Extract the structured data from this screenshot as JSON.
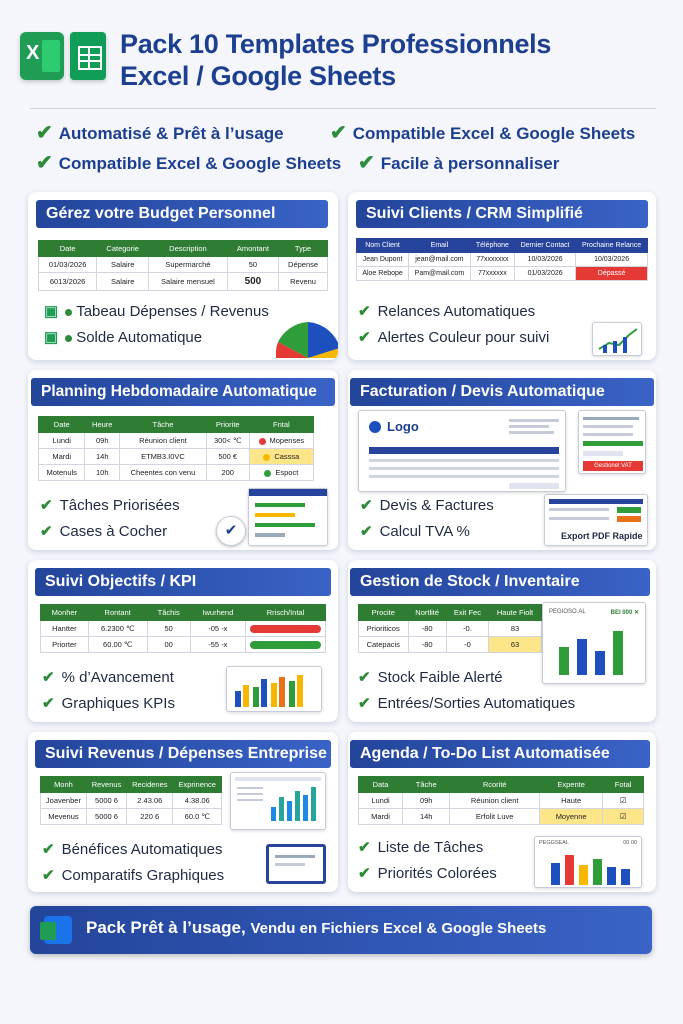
{
  "header": {
    "title_line1": "Pack 10 Templates Professionnels",
    "title_line2": "Excel / Google Sheets",
    "excel_logo_letter": "X"
  },
  "features": [
    "Automatisé & Prêt à l’usage",
    "Compatible Excel & Google Sheets",
    "Compatible Excel & Google Sheets",
    "Facile à personnaliser"
  ],
  "cards": {
    "budget": {
      "title": "Gérez votre Budget Personnel",
      "headers": [
        "Date",
        "Categorie",
        "Description",
        "Amontant",
        "Type"
      ],
      "rows": [
        [
          "01/03/2026",
          "Salaire",
          "Supermarché",
          "50",
          "Dépense"
        ],
        [
          "6013/2026",
          "Salaire",
          "Salaire mensuel",
          "500",
          "Revenu"
        ]
      ],
      "bullets": [
        "Tabeau Dépenses / Revenus",
        "Solde Automatique"
      ]
    },
    "crm": {
      "title": "Suivi Clients / CRM Simplifié",
      "headers": [
        "Nom Client",
        "Email",
        "Téléphone",
        "Dernier Contact",
        "Prochaine Relance"
      ],
      "rows": [
        [
          "Jean Dupont",
          "jean@mail.com",
          "77xxxxxxx",
          "10/03/2026",
          "10/03/2026"
        ],
        [
          "Aloe Rebope",
          "Pam@mail.com",
          "77xxxxxx",
          "01/03/2026",
          "Dépassé"
        ]
      ],
      "bullets": [
        "Relances Automatiques",
        "Alertes Couleur pour suivi"
      ]
    },
    "planning": {
      "title": "Planning Hebdomadaire Automatique",
      "headers": [
        "Date",
        "Heure",
        "Tâche",
        "Priorite",
        "Fntal"
      ],
      "rows": [
        [
          "Lundi",
          "09h",
          "Réunion client",
          "300< ℃",
          "Mopenses"
        ],
        [
          "Mardi",
          "14h",
          "ETMB3.I0VC",
          "500 €",
          "Casssa"
        ],
        [
          "Motenuls",
          "10h",
          "Cheentes con venu",
          "200",
          "Espoct"
        ]
      ],
      "bullets": [
        "Tâches Priorisées",
        "Cases à Cocher"
      ]
    },
    "facturation": {
      "title": "Facturation / Devis Automatique",
      "logo_text": "Logo",
      "button_text": "Gestionel VAT",
      "footer_text": "Export PDF Rapide",
      "bullets": [
        "Devis & Factures",
        "Calcul TVA %"
      ]
    },
    "kpi": {
      "title": "Suivi Objectifs / KPI",
      "headers": [
        "Monher",
        "Rontant",
        "Tâchis",
        "Iwurhend",
        "Rrisch/Intal"
      ],
      "rows": [
        [
          "Hantter",
          "6.2300 ℃",
          "50",
          "-05 -x"
        ],
        [
          "Priorter",
          "60.00 ℃",
          "00",
          "-55 -x"
        ]
      ],
      "bullets": [
        "% d’Avancement",
        "Graphiques KPIs"
      ]
    },
    "stock": {
      "title": "Gestion de Stock / Inventaire",
      "headers": [
        "Procite",
        "Nortlité",
        "Exit Fec",
        "Haute Fiolt"
      ],
      "rows": [
        [
          "Prioriticos",
          "-80",
          "-0.",
          "83"
        ],
        [
          "Catepacis",
          "-80",
          "-0",
          "63"
        ]
      ],
      "chart_label_left": "PEGIOSO.AL",
      "chart_label_right": "BEI 000 ✕",
      "bullets": [
        "Stock Faible Alerté",
        "Entrées/Sorties Automatiques"
      ]
    },
    "revenus": {
      "title": "Suivi Revenus / Dépenses Entreprise",
      "headers": [
        "Monh",
        "Revenus",
        "Recidenes",
        "Exprinence"
      ],
      "rows": [
        [
          "Joavenber",
          "5000 6",
          "2.43.06",
          "4.38.06"
        ],
        [
          "Mevenus",
          "5000 6",
          "220 6",
          "60.0 ℃"
        ]
      ],
      "bullets": [
        "Bénéfices Automatiques",
        "Comparatifs Graphiques"
      ]
    },
    "agenda": {
      "title": "Agenda / To-Do List Automatisée",
      "headers": [
        "Data",
        "Tâche",
        "Rcorité",
        "Expente",
        "Fotal"
      ],
      "rows": [
        [
          "Lundi",
          "09h",
          "Réunion client",
          "Haute",
          "☑"
        ],
        [
          "Mardi",
          "14h",
          "Erfolit Luve",
          "Moyenne",
          "☑"
        ]
      ],
      "chart_label_left": "PEGGSEAL",
      "chart_label_right": "00 00",
      "bullets": [
        "Liste de Tâches",
        "Priorités Colorées"
      ]
    }
  },
  "banner": {
    "text_bold": "Pack Prêt à l’usage,",
    "text_rest": "Vendu en Fichiers Excel & Google Sheets"
  },
  "colors": {
    "brand_blue": "#23459a",
    "table_green": "#2e7d32",
    "check_green": "#2e8b3a",
    "alert_red": "#e53935",
    "highlight_yellow": "#fde68a"
  }
}
